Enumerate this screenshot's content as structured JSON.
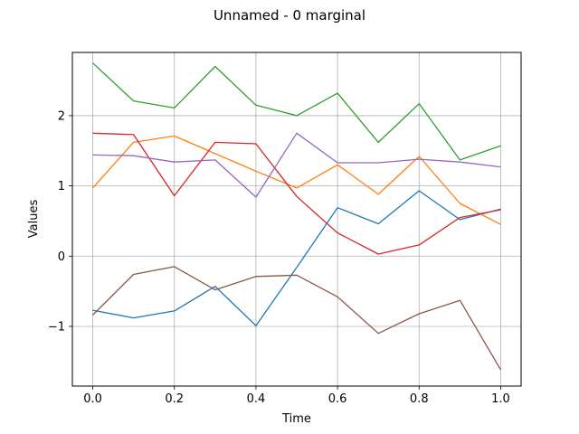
{
  "chart_data": {
    "type": "line",
    "title": "Unnamed - 0 marginal",
    "xlabel": "Time",
    "ylabel": "Values",
    "xlim": [
      -0.05,
      1.05
    ],
    "ylim": [
      -1.85,
      2.9
    ],
    "grid": true,
    "legend": "none",
    "x": [
      0.0,
      0.1,
      0.2,
      0.3,
      0.4,
      0.5,
      0.6,
      0.7,
      0.8,
      0.9,
      1.0
    ],
    "xticks": [
      0.0,
      0.2,
      0.4,
      0.6,
      0.8,
      1.0
    ],
    "xtick_labels": [
      "0.0",
      "0.2",
      "0.4",
      "0.6",
      "0.8",
      "1.0"
    ],
    "yticks": [
      -1,
      0,
      1,
      2
    ],
    "ytick_labels": [
      "−1",
      "0",
      "1",
      "2"
    ],
    "series": [
      {
        "color": "#1f77b4",
        "values": [
          -0.77,
          -0.88,
          -0.78,
          -0.43,
          -0.99,
          -0.16,
          0.69,
          0.46,
          0.93,
          0.52,
          0.67
        ]
      },
      {
        "color": "#ff7f0e",
        "values": [
          0.97,
          1.62,
          1.71,
          1.46,
          1.21,
          0.97,
          1.3,
          0.88,
          1.42,
          0.75,
          0.45
        ]
      },
      {
        "color": "#2ca02c",
        "values": [
          2.75,
          2.21,
          2.11,
          2.7,
          2.15,
          2.0,
          2.32,
          1.62,
          2.17,
          1.37,
          1.57
        ]
      },
      {
        "color": "#d62728",
        "values": [
          1.75,
          1.73,
          0.86,
          1.62,
          1.6,
          0.85,
          0.33,
          0.03,
          0.16,
          0.55,
          0.66
        ]
      },
      {
        "color": "#9467bd",
        "values": [
          1.44,
          1.43,
          1.34,
          1.37,
          0.84,
          1.75,
          1.33,
          1.33,
          1.38,
          1.34,
          1.27
        ]
      },
      {
        "color": "#8c564b",
        "values": [
          -0.84,
          -0.26,
          -0.15,
          -0.48,
          -0.29,
          -0.27,
          -0.58,
          -1.1,
          -0.82,
          -0.63,
          -1.62
        ]
      }
    ]
  }
}
